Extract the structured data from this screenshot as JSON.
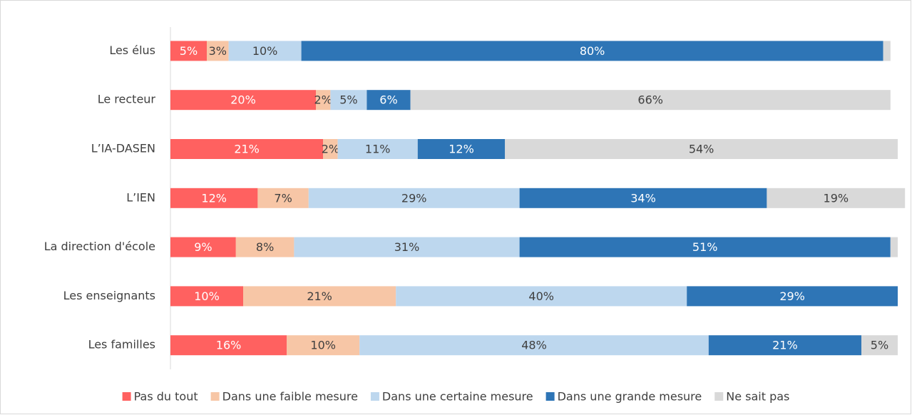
{
  "chart_data": {
    "type": "stacked-bar-horizontal",
    "categories": [
      "Les élus",
      "Le recteur",
      "L’IA-DASEN",
      "L’IEN",
      "La direction d'école",
      "Les enseignants",
      "Les familles"
    ],
    "series": [
      {
        "name": "Pas du tout",
        "color": "#ff6160",
        "label_color": "#ffffff",
        "values": [
          5,
          20,
          21,
          12,
          9,
          10,
          16
        ],
        "value_labels": [
          "5%",
          "20%",
          "21%",
          "12%",
          "9%",
          "10%",
          "16%"
        ]
      },
      {
        "name": "Dans une faible mesure",
        "color": "#f7c6a6",
        "label_color": "#404040",
        "values": [
          3,
          2,
          2,
          7,
          8,
          21,
          10
        ],
        "value_labels": [
          "3%",
          "2%",
          "2%",
          "7%",
          "8%",
          "21%",
          "10%"
        ]
      },
      {
        "name": "Dans une certaine mesure",
        "color": "#bdd7ee",
        "label_color": "#404040",
        "values": [
          10,
          5,
          11,
          29,
          31,
          40,
          48
        ],
        "value_labels": [
          "10%",
          "5%",
          "11%",
          "29%",
          "31%",
          "40%",
          "48%"
        ]
      },
      {
        "name": "Dans une grande mesure",
        "color": "#2e75b6",
        "label_color": "#ffffff",
        "values": [
          80,
          6,
          12,
          34,
          51,
          29,
          21
        ],
        "value_labels": [
          "80%",
          "6%",
          "12%",
          "34%",
          "51%",
          "29%",
          "21%"
        ]
      },
      {
        "name": "Ne sait pas",
        "color": "#d9d9d9",
        "label_color": "#404040",
        "values": [
          1,
          66,
          54,
          19,
          1,
          0,
          5
        ],
        "value_labels": [
          null,
          "66%",
          "54%",
          "19%",
          null,
          null,
          "5%"
        ]
      }
    ],
    "legend": "bottom"
  }
}
